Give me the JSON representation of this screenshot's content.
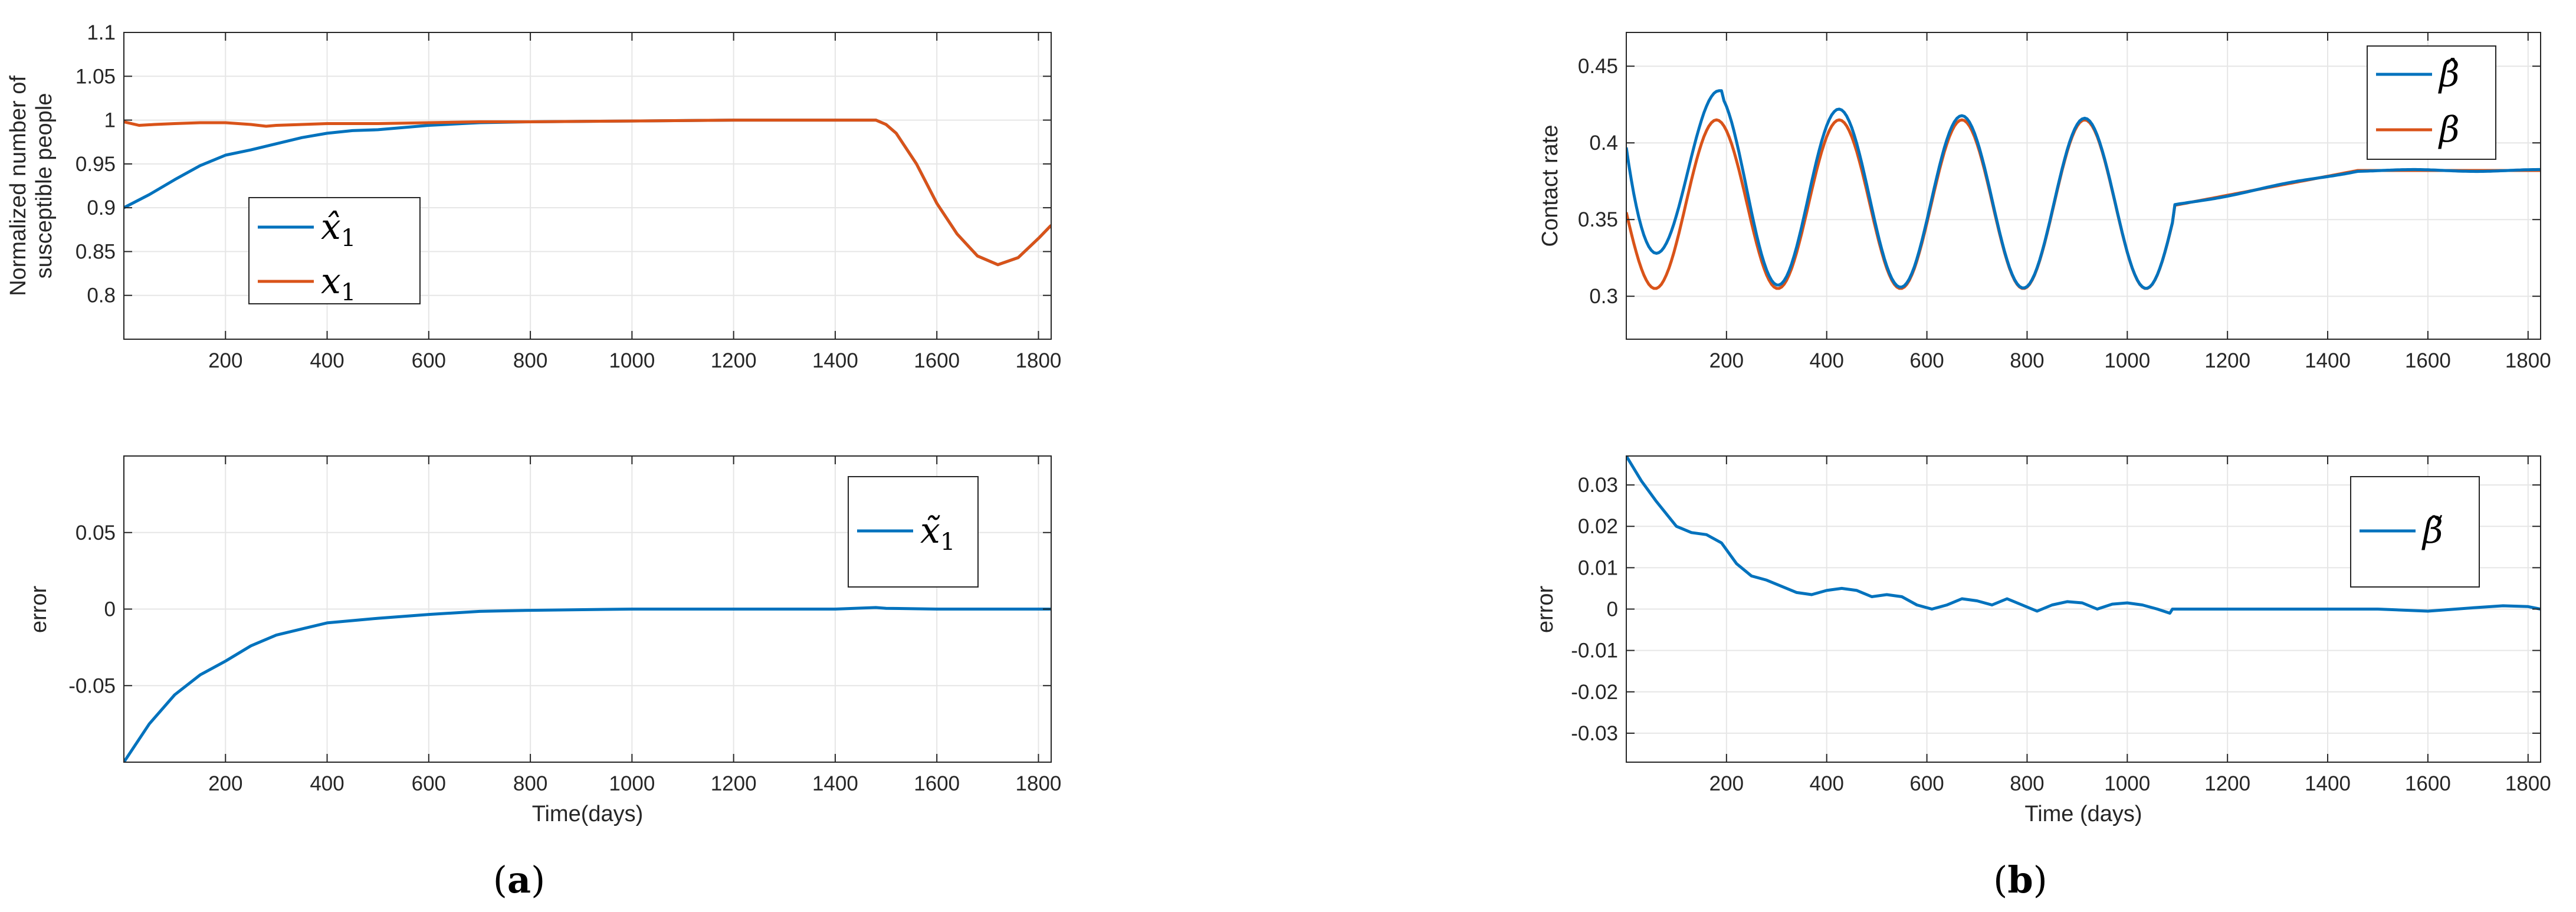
{
  "colors": {
    "estimate": "#0072BD",
    "actual": "#D95319",
    "grid": "#e6e6e6",
    "axis": "#262626"
  },
  "captions": {
    "a": {
      "open": "(",
      "letter": "a",
      "close": ")"
    },
    "b": {
      "open": "(",
      "letter": "b",
      "close": ")"
    }
  },
  "chart_data": [
    {
      "id": "a_top",
      "type": "line",
      "title": "",
      "xlabel": "",
      "ylabel_lines": [
        "Normalized number of",
        "susceptible people"
      ],
      "xlim": [
        0,
        1825
      ],
      "ylim": [
        0.75,
        1.1
      ],
      "xticks": [
        200,
        400,
        600,
        800,
        1000,
        1200,
        1400,
        1600,
        1800
      ],
      "yticks": [
        0.8,
        0.85,
        0.9,
        0.95,
        1,
        1.05,
        1.1
      ],
      "ytick_labels": [
        "0.8",
        "0.85",
        "0.9",
        "0.95",
        "1",
        "1.05",
        "1.1"
      ],
      "grid": true,
      "legend_position": "middle-left",
      "series": [
        {
          "name": "x̂1",
          "legend_main": "x̂",
          "legend_sub": "1",
          "color": "#0072BD",
          "x": [
            0,
            50,
            100,
            150,
            200,
            250,
            300,
            350,
            400,
            450,
            500,
            600,
            700,
            800,
            1000,
            1200,
            1400,
            1480,
            1500,
            1520,
            1560,
            1600,
            1640,
            1680,
            1720,
            1760,
            1800,
            1825
          ],
          "y": [
            0.9,
            0.915,
            0.932,
            0.948,
            0.96,
            0.966,
            0.973,
            0.98,
            0.985,
            0.988,
            0.989,
            0.994,
            0.997,
            0.998,
            0.999,
            1.0,
            1.0,
            1.0,
            0.995,
            0.985,
            0.95,
            0.905,
            0.87,
            0.845,
            0.835,
            0.843,
            0.865,
            0.88
          ]
        },
        {
          "name": "x1",
          "legend_main": "x",
          "legend_sub": "1",
          "color": "#D95319",
          "x": [
            0,
            30,
            60,
            100,
            150,
            200,
            250,
            280,
            300,
            400,
            500,
            600,
            700,
            800,
            1000,
            1200,
            1400,
            1480,
            1500,
            1520,
            1560,
            1600,
            1640,
            1680,
            1720,
            1760,
            1800,
            1825
          ],
          "y": [
            0.998,
            0.994,
            0.995,
            0.996,
            0.997,
            0.997,
            0.995,
            0.993,
            0.994,
            0.996,
            0.996,
            0.997,
            0.998,
            0.998,
            0.999,
            1.0,
            1.0,
            1.0,
            0.995,
            0.985,
            0.95,
            0.905,
            0.87,
            0.845,
            0.835,
            0.843,
            0.865,
            0.88
          ]
        }
      ]
    },
    {
      "id": "a_bottom",
      "type": "line",
      "title": "",
      "xlabel": "Time(days)",
      "ylabel_lines": [
        "error"
      ],
      "xlim": [
        0,
        1825
      ],
      "ylim": [
        -0.1,
        0.1
      ],
      "xticks": [
        200,
        400,
        600,
        800,
        1000,
        1200,
        1400,
        1600,
        1800
      ],
      "yticks": [
        -0.05,
        0,
        0.05
      ],
      "ytick_labels": [
        "-0.05",
        "0",
        "0.05"
      ],
      "grid": true,
      "legend_position": "top-right",
      "series": [
        {
          "name": "x̃1",
          "legend_main": "x̃",
          "legend_sub": "1",
          "color": "#0072BD",
          "x": [
            0,
            50,
            100,
            150,
            200,
            250,
            300,
            350,
            400,
            450,
            500,
            600,
            700,
            800,
            1000,
            1200,
            1400,
            1480,
            1500,
            1600,
            1700,
            1825
          ],
          "y": [
            -0.1,
            -0.075,
            -0.056,
            -0.043,
            -0.034,
            -0.024,
            -0.017,
            -0.013,
            -0.009,
            -0.0075,
            -0.006,
            -0.0035,
            -0.0015,
            -0.0008,
            0.0,
            0.0,
            0.0,
            0.001,
            0.0005,
            0.0,
            0.0,
            0.0
          ]
        }
      ]
    },
    {
      "id": "b_top",
      "type": "line",
      "title": "",
      "xlabel": "",
      "ylabel_lines": [
        "Contact rate"
      ],
      "xlim": [
        0,
        1825
      ],
      "ylim": [
        0.272,
        0.472
      ],
      "xticks": [
        200,
        400,
        600,
        800,
        1000,
        1200,
        1400,
        1600,
        1800
      ],
      "yticks": [
        0.3,
        0.35,
        0.4,
        0.45
      ],
      "ytick_labels": [
        "0.3",
        "0.35",
        "0.4",
        "0.45"
      ],
      "grid": true,
      "legend_position": "top-right",
      "series": [
        {
          "name": "β̂",
          "legend_main": "β̂",
          "legend_sub": "",
          "color": "#0072BD",
          "kind": "beta_hat"
        },
        {
          "name": "β",
          "legend_main": "β",
          "legend_sub": "",
          "color": "#D95319",
          "kind": "beta"
        }
      ],
      "model": {
        "mean": 0.36,
        "amplitude": 0.055,
        "period_days": 245,
        "peak_day": 180,
        "oscillation_end": 1090,
        "ramp_start_value": 0.359,
        "ramp_end_day": 1460,
        "plateau_value": 0.382,
        "estimate_initial": 0.397,
        "estimate_initial_peak": 0.434,
        "estimate_initial_min": 0.328
      }
    },
    {
      "id": "b_bottom",
      "type": "line",
      "title": "",
      "xlabel": "Time (days)",
      "ylabel_lines": [
        "error"
      ],
      "xlim": [
        0,
        1825
      ],
      "ylim": [
        -0.037,
        0.037
      ],
      "xticks": [
        200,
        400,
        600,
        800,
        1000,
        1200,
        1400,
        1600,
        1800
      ],
      "yticks": [
        -0.03,
        -0.02,
        -0.01,
        0,
        0.01,
        0.02,
        0.03
      ],
      "ytick_labels": [
        "-0.03",
        "-0.02",
        "-0.01",
        "0",
        "0.01",
        "0.02",
        "0.03"
      ],
      "grid": true,
      "legend_position": "top-right",
      "series": [
        {
          "name": "β̃",
          "legend_main": "β̃",
          "legend_sub": "",
          "color": "#0072BD",
          "x": [
            0,
            30,
            60,
            100,
            130,
            160,
            190,
            220,
            250,
            280,
            310,
            340,
            370,
            400,
            430,
            460,
            490,
            520,
            550,
            580,
            610,
            640,
            670,
            700,
            730,
            760,
            790,
            820,
            850,
            880,
            910,
            940,
            970,
            1000,
            1030,
            1060,
            1085,
            1090,
            1095,
            1200,
            1400,
            1500,
            1600,
            1700,
            1750,
            1800,
            1825
          ],
          "y": [
            0.037,
            0.031,
            0.026,
            0.02,
            0.0185,
            0.018,
            0.016,
            0.011,
            0.008,
            0.007,
            0.0055,
            0.004,
            0.0035,
            0.0045,
            0.005,
            0.0045,
            0.003,
            0.0035,
            0.003,
            0.001,
            0.0,
            0.001,
            0.0025,
            0.002,
            0.001,
            0.0025,
            0.001,
            -0.0005,
            0.001,
            0.0018,
            0.0015,
            0.0,
            0.0012,
            0.0015,
            0.001,
            0.0,
            -0.001,
            0.0,
            0.0,
            0.0,
            0.0,
            0.0,
            -0.0005,
            0.0004,
            0.0008,
            0.0006,
            0.0
          ]
        }
      ]
    }
  ]
}
